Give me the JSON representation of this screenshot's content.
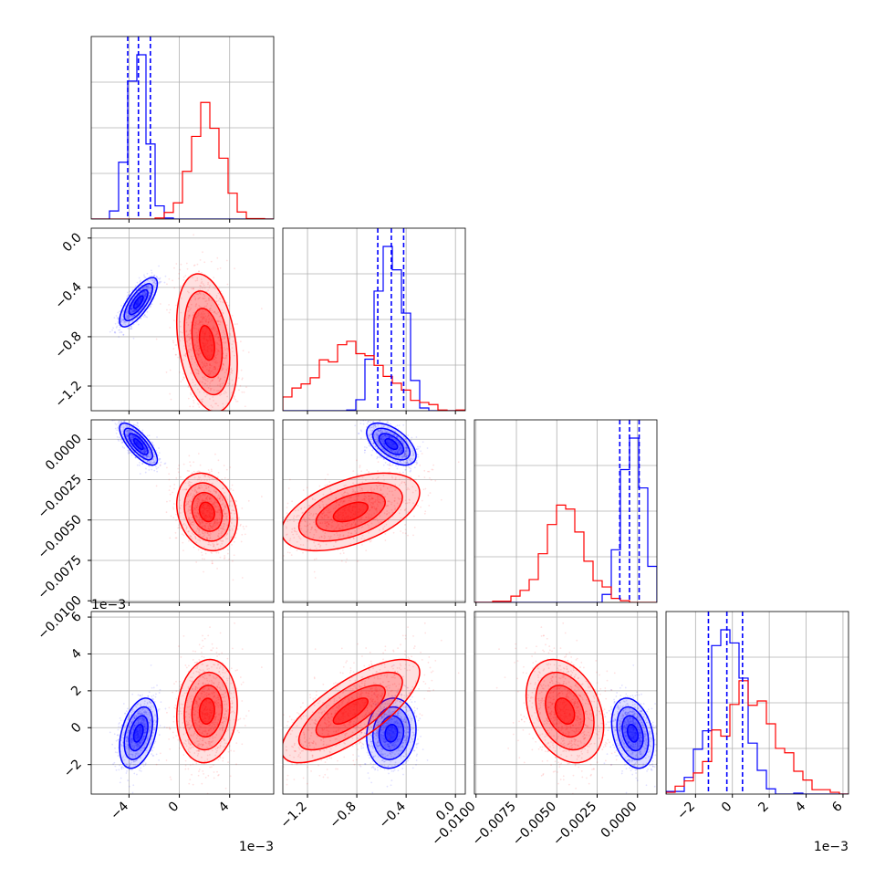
{
  "chart_data": {
    "type": "corner",
    "n_params": 4,
    "colors": {
      "blue": "#0000ff",
      "red": "#ff0000",
      "grid": "#b0b0b0"
    },
    "axes": [
      {
        "range": [
          -7,
          7.5
        ],
        "ticks": [
          -4,
          0,
          4
        ],
        "tick_labels": [
          "−4",
          "0",
          "4"
        ],
        "offset_label": "1e−3"
      },
      {
        "range": [
          -1.4,
          0.08
        ],
        "ticks": [
          -1.2,
          -0.8,
          -0.4,
          0.0
        ],
        "tick_labels": [
          "−1.2",
          "−0.8",
          "−0.4",
          "0.0"
        ],
        "offset_label": ""
      },
      {
        "range": [
          -0.0101,
          0.0012
        ],
        "ticks": [
          -0.01,
          -0.0075,
          -0.005,
          -0.0025,
          0.0
        ],
        "tick_labels": [
          "−0.0100",
          "−0.0075",
          "−0.0050",
          "−0.0025",
          "0.0000"
        ],
        "offset_label": ""
      },
      {
        "range": [
          -3.6,
          6.3
        ],
        "ticks": [
          -2,
          0,
          2,
          4,
          6
        ],
        "tick_labels": [
          "−2",
          "0",
          "2",
          "4",
          "6"
        ],
        "offset_label": "1e−3"
      }
    ],
    "series": [
      {
        "color": "blue",
        "mean": [
          -3.25,
          -0.52,
          -0.0003,
          -0.3
        ],
        "std": [
          0.75,
          0.1,
          0.00065,
          0.95
        ],
        "corr": [
          [
            0,
            1,
            0.75
          ],
          [
            0,
            2,
            -0.75
          ],
          [
            0,
            3,
            0.4
          ],
          [
            1,
            2,
            -0.55
          ],
          [
            1,
            3,
            0.1
          ],
          [
            2,
            3,
            -0.3
          ]
        ],
        "quantiles": [
          [
            -4.1,
            -3.25,
            -2.3
          ],
          [
            -0.63,
            -0.52,
            -0.42
          ],
          [
            -0.0011,
            -0.0005,
            0.0001
          ],
          [
            -1.3,
            -0.3,
            0.55
          ]
        ]
      },
      {
        "color": "red",
        "mean": [
          2.2,
          -0.85,
          -0.0045,
          0.9
        ],
        "std": [
          1.2,
          0.28,
          0.0012,
          1.4
        ],
        "corr": [
          [
            0,
            1,
            -0.3
          ],
          [
            0,
            2,
            -0.2
          ],
          [
            0,
            3,
            0.1
          ],
          [
            1,
            2,
            0.5
          ],
          [
            1,
            3,
            0.75
          ],
          [
            2,
            3,
            -0.3
          ]
        ],
        "quantiles": []
      }
    ]
  }
}
